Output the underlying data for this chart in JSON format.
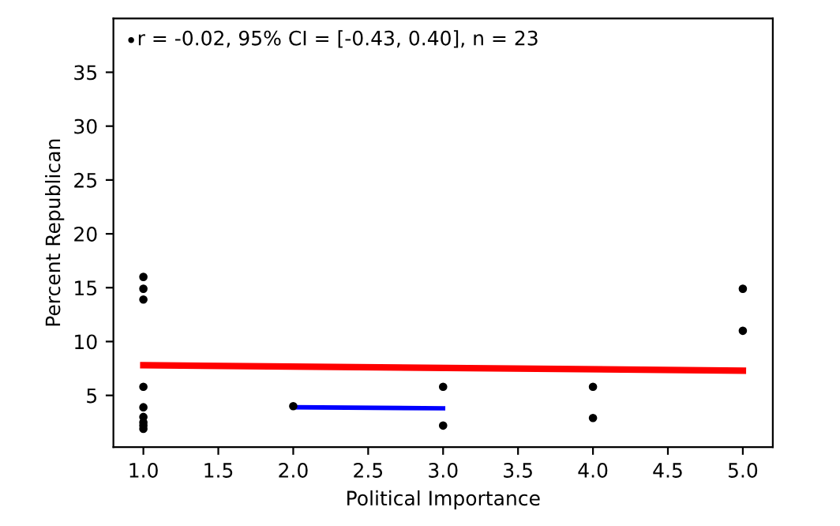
{
  "chart_data": {
    "type": "scatter",
    "xlabel": "Political Importance",
    "ylabel": "Percent Republican",
    "xlim": [
      0.8,
      5.2
    ],
    "ylim": [
      0.2,
      40
    ],
    "xticks": [
      {
        "value": 1,
        "label": "1.0"
      },
      1.5,
      {
        "value": 2,
        "label": "2.0"
      },
      2.5,
      {
        "value": 3,
        "label": "3.0"
      },
      3.5,
      {
        "value": 4,
        "label": "4.0"
      },
      4.5,
      {
        "value": 5,
        "label": "5.0"
      }
    ],
    "yticks": [
      5,
      10,
      15,
      20,
      25,
      30,
      35
    ],
    "grid": false,
    "legend": "top left",
    "series": [
      {
        "name": "r = -0.02, 95% CI = [-0.43, 0.40], n = 23",
        "color": "#000000",
        "x": [
          1,
          1,
          1,
          1,
          1,
          1,
          1,
          1,
          1,
          2,
          3,
          3,
          4,
          4,
          5,
          5
        ],
        "values": [
          16.0,
          14.9,
          13.9,
          5.8,
          3.9,
          3.0,
          2.5,
          2.2,
          1.9,
          4.0,
          5.8,
          2.2,
          5.8,
          2.9,
          14.9,
          11.0
        ]
      },
      {
        "type": "line",
        "color": "#ff0000",
        "x": [
          1,
          5
        ],
        "values": [
          7.8,
          7.3
        ]
      },
      {
        "type": "line",
        "color": "#0000ff",
        "x": [
          2,
          3
        ],
        "values": [
          3.9,
          3.8
        ]
      }
    ]
  }
}
